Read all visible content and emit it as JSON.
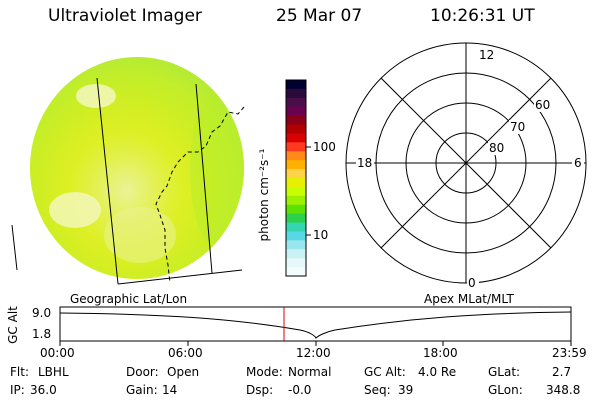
{
  "header": {
    "instrument": "Ultraviolet Imager",
    "date": "25 Mar 07",
    "time": "10:26:31 UT"
  },
  "colorbar": {
    "unit_label": "photon cm⁻²s⁻¹",
    "ticks": [
      "100",
      "10"
    ],
    "colors": [
      "#000033",
      "#2a0a3a",
      "#4a0f4a",
      "#6a0050",
      "#8a0018",
      "#b00000",
      "#d80000",
      "#ff3a1e",
      "#ff8a1a",
      "#ffb000",
      "#ffd24a",
      "#e6f000",
      "#c8ff00",
      "#9cf000",
      "#5ee000",
      "#2dd04b",
      "#33d6b0",
      "#58d8e6",
      "#9ae6ee",
      "#c8f2f4",
      "#e6f8fa",
      "#f2fcfd"
    ]
  },
  "polar": {
    "top": "12",
    "left": "18",
    "right": "6",
    "bottom": "0",
    "lat_labels": [
      "60",
      "70",
      "80"
    ]
  },
  "timeline": {
    "left_title": "Geographic Lat/Lon",
    "right_title": "Apex MLat/MLT",
    "y_label": "GC Alt",
    "y_ticks": [
      "9.0",
      "1.8"
    ],
    "x_ticks": [
      "00:00",
      "06:00",
      "12:00",
      "18:00",
      "23:59"
    ]
  },
  "info": {
    "row1": [
      {
        "label": "Flt:",
        "value": "LBHL"
      },
      {
        "label": "Door:",
        "value": "Open"
      },
      {
        "label": "Mode:",
        "value": "Normal"
      },
      {
        "label": "GC Alt:",
        "value": "4.0 Re"
      },
      {
        "label": "GLat:",
        "value": "2.7"
      }
    ],
    "row2": [
      {
        "label": "IP:",
        "value": "36.0"
      },
      {
        "label": "Gain:",
        "value": "14"
      },
      {
        "label": "Dsp:",
        "value": "-0.0"
      },
      {
        "label": "Seq:",
        "value": "39"
      },
      {
        "label": "GLon:",
        "value": "348.8"
      }
    ]
  }
}
